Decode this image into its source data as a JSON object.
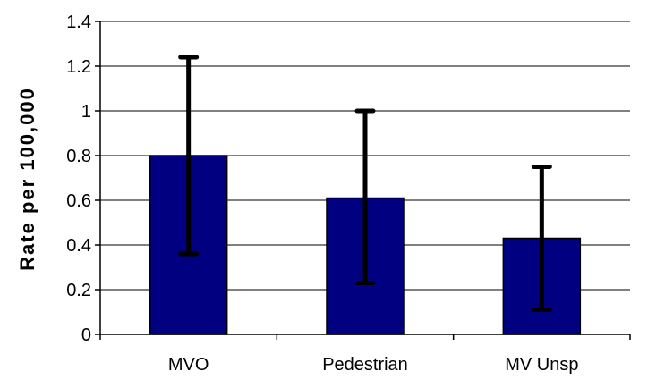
{
  "chart_data": {
    "type": "bar",
    "title": "",
    "xlabel": "",
    "ylabel": "Rate per 100,000",
    "categories": [
      "MVO",
      "Pedestrian",
      "MV Unsp"
    ],
    "values": [
      0.8,
      0.61,
      0.43
    ],
    "error_low": [
      0.36,
      0.23,
      0.11
    ],
    "error_high": [
      1.24,
      1.0,
      0.75
    ],
    "ylim": [
      0,
      1.4
    ],
    "yticks": [
      0,
      0.2,
      0.4,
      0.6,
      0.8,
      1.0,
      1.2,
      1.4
    ],
    "ytick_labels": [
      "0",
      "0.2",
      "0.4",
      "0.6",
      "0.8",
      "1",
      "1.2",
      "1.4"
    ],
    "grid": true,
    "legend": "none",
    "colors": {
      "bar_fill": "#000080",
      "bar_stroke": "#000000",
      "error_bar": "#000000",
      "grid": "#000000"
    }
  }
}
